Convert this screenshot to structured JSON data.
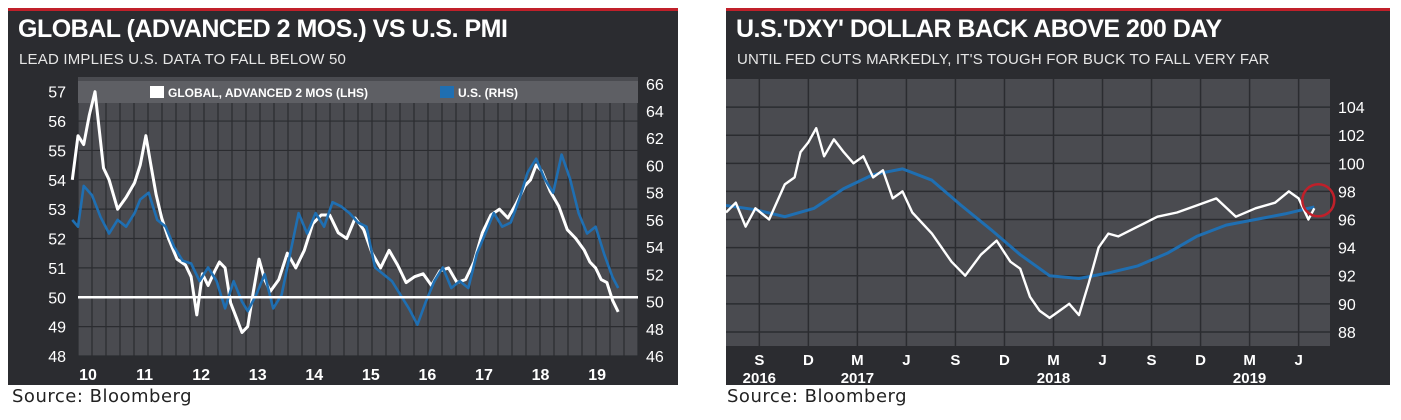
{
  "left": {
    "title": "GLOBAL (ADVANCED 2 MOS.) VS U.S. PMI",
    "subtitle": "LEAD IMPLIES U.S. DATA TO FALL BELOW 50",
    "source": "Source: Bloomberg"
  },
  "right": {
    "title": "U.S.'DXY' DOLLAR BACK ABOVE 200 DAY",
    "subtitle": "UNTIL FED CUTS MARKEDLY, IT'S TOUGH FOR BUCK TO FALL VERY FAR",
    "source": "Source: Bloomberg"
  },
  "colors": {
    "panel": "#2b2c30",
    "plot": "#4a4b50",
    "grid": "#2b2c30",
    "white_line": "#ffffff",
    "blue_line": "#1f6fb2",
    "accent": "#c0202a"
  },
  "chart_data": [
    {
      "type": "line",
      "title": "GLOBAL (ADVANCED 2 MOS.) VS U.S. PMI",
      "legend": {
        "position": "top",
        "entries": [
          "GLOBAL, ADVANCED 2 MOS (LHS)",
          "U.S. (RHS)"
        ]
      },
      "x_ticks": [
        "10",
        "11",
        "12",
        "13",
        "14",
        "15",
        "16",
        "17",
        "18",
        "19"
      ],
      "xlim": [
        2010,
        2019.9
      ],
      "ylim_left": [
        48,
        57.5
      ],
      "ylim_right": [
        46,
        66.5
      ],
      "left_ticks": [
        "57",
        "56",
        "55",
        "54",
        "53",
        "52",
        "51",
        "50",
        "49",
        "48"
      ],
      "right_ticks": [
        "66",
        "64",
        "62",
        "60",
        "58",
        "56",
        "54",
        "52",
        "50",
        "48",
        "46"
      ],
      "reference_line": 50,
      "grid": true,
      "series": [
        {
          "name": "GLOBAL, ADVANCED 2 MOS (LHS)",
          "axis": "left",
          "color": "#ffffff",
          "x": [
            2009.9,
            2010.0,
            2010.1,
            2010.2,
            2010.3,
            2010.45,
            2010.55,
            2010.7,
            2010.85,
            2011.0,
            2011.1,
            2011.2,
            2011.28,
            2011.38,
            2011.48,
            2011.6,
            2011.75,
            2011.9,
            2012.0,
            2012.1,
            2012.2,
            2012.3,
            2012.42,
            2012.5,
            2012.6,
            2012.7,
            2012.8,
            2012.9,
            2013.0,
            2013.1,
            2013.2,
            2013.3,
            2013.4,
            2013.55,
            2013.7,
            2013.85,
            2014.0,
            2014.15,
            2014.3,
            2014.45,
            2014.6,
            2014.75,
            2014.9,
            2015.05,
            2015.2,
            2015.35,
            2015.5,
            2015.65,
            2015.8,
            2015.95,
            2016.1,
            2016.25,
            2016.4,
            2016.55,
            2016.7,
            2016.85,
            2017.0,
            2017.15,
            2017.3,
            2017.45,
            2017.6,
            2017.75,
            2017.9,
            2018.0,
            2018.1,
            2018.2,
            2018.35,
            2018.5,
            2018.65,
            2018.8,
            2018.95,
            2019.05,
            2019.15,
            2019.25,
            2019.35,
            2019.45,
            2019.55
          ],
          "values": [
            54.0,
            55.5,
            55.2,
            56.2,
            57.0,
            54.4,
            54.0,
            53.0,
            53.4,
            53.9,
            54.5,
            55.5,
            54.6,
            53.5,
            52.7,
            52.0,
            51.3,
            51.1,
            50.7,
            49.4,
            50.8,
            50.4,
            50.9,
            51.2,
            51.0,
            49.8,
            49.3,
            48.8,
            49.0,
            50.2,
            51.3,
            50.6,
            50.2,
            50.6,
            51.5,
            51.0,
            51.6,
            52.5,
            52.8,
            52.8,
            52.2,
            52.0,
            52.7,
            52.3,
            51.5,
            51.0,
            51.6,
            51.1,
            50.5,
            50.7,
            50.8,
            50.4,
            50.9,
            51.0,
            50.5,
            50.6,
            51.2,
            52.2,
            52.8,
            53.0,
            52.7,
            53.2,
            53.8,
            54.0,
            54.5,
            54.3,
            53.6,
            53.1,
            52.3,
            52.0,
            51.6,
            51.2,
            51.0,
            50.6,
            50.5,
            49.9,
            49.5
          ]
        },
        {
          "name": "U.S. (RHS)",
          "axis": "right",
          "color": "#1f6fb2",
          "x": [
            2009.9,
            2010.0,
            2010.1,
            2010.25,
            2010.4,
            2010.55,
            2010.7,
            2010.85,
            2011.0,
            2011.1,
            2011.25,
            2011.4,
            2011.55,
            2011.7,
            2011.85,
            2012.0,
            2012.15,
            2012.3,
            2012.45,
            2012.6,
            2012.75,
            2012.9,
            2013.0,
            2013.15,
            2013.3,
            2013.45,
            2013.6,
            2013.75,
            2013.9,
            2014.05,
            2014.2,
            2014.35,
            2014.5,
            2014.65,
            2014.8,
            2014.95,
            2015.1,
            2015.25,
            2015.4,
            2015.55,
            2015.7,
            2015.85,
            2016.0,
            2016.15,
            2016.3,
            2016.45,
            2016.6,
            2016.75,
            2016.9,
            2017.05,
            2017.2,
            2017.35,
            2017.5,
            2017.65,
            2017.8,
            2017.95,
            2018.1,
            2018.25,
            2018.4,
            2018.55,
            2018.7,
            2018.85,
            2019.0,
            2019.15,
            2019.3,
            2019.45,
            2019.55
          ],
          "values": [
            56.0,
            55.5,
            58.5,
            57.8,
            56.2,
            55.0,
            56.0,
            55.5,
            56.5,
            57.5,
            58.0,
            56.0,
            55.5,
            54.0,
            53.0,
            52.8,
            51.5,
            52.5,
            51.5,
            49.5,
            51.5,
            50.0,
            49.3,
            50.5,
            52.0,
            49.5,
            50.5,
            53.5,
            56.5,
            55.0,
            56.5,
            55.5,
            57.3,
            57.0,
            56.5,
            55.8,
            55.5,
            52.5,
            52.0,
            51.5,
            50.5,
            49.5,
            48.3,
            50.0,
            51.5,
            52.5,
            51.0,
            51.5,
            51.0,
            53.5,
            55.0,
            56.5,
            55.5,
            55.8,
            57.5,
            59.5,
            60.5,
            59.0,
            58.0,
            60.8,
            59.0,
            56.5,
            55.0,
            55.5,
            53.5,
            51.8,
            51.0
          ]
        }
      ]
    },
    {
      "type": "line",
      "title": "U.S.'DXY' DOLLAR BACK ABOVE 200 DAY",
      "x_ticks_month": [
        "S",
        "D",
        "M",
        "J",
        "S",
        "D",
        "M",
        "J",
        "S",
        "D",
        "M",
        "J"
      ],
      "x_ticks_year": [
        "2016",
        "2017",
        "2018",
        "2019"
      ],
      "xlim": [
        2016.5,
        2019.58
      ],
      "ylim": [
        87,
        106
      ],
      "right_ticks": [
        "104",
        "102",
        "100",
        "98",
        "96",
        "94",
        "92",
        "90",
        "88"
      ],
      "grid": true,
      "annotation": "circle at latest value",
      "series": [
        {
          "name": "DXY",
          "color": "#ffffff",
          "x": [
            2016.5,
            2016.55,
            2016.6,
            2016.65,
            2016.72,
            2016.8,
            2016.85,
            2016.88,
            2016.92,
            2016.96,
            2017.0,
            2017.05,
            2017.1,
            2017.15,
            2017.2,
            2017.25,
            2017.3,
            2017.35,
            2017.4,
            2017.45,
            2017.55,
            2017.65,
            2017.72,
            2017.8,
            2017.88,
            2017.95,
            2018.0,
            2018.05,
            2018.1,
            2018.15,
            2018.2,
            2018.25,
            2018.3,
            2018.35,
            2018.4,
            2018.45,
            2018.5,
            2018.6,
            2018.7,
            2018.8,
            2018.9,
            2019.0,
            2019.1,
            2019.2,
            2019.3,
            2019.37,
            2019.42,
            2019.47,
            2019.5
          ],
          "values": [
            96.5,
            97.2,
            95.5,
            96.8,
            96.0,
            98.5,
            99.0,
            100.8,
            101.5,
            102.5,
            100.5,
            101.7,
            100.8,
            100.0,
            100.5,
            99.0,
            99.5,
            97.5,
            98.0,
            96.5,
            95.0,
            93.0,
            92.0,
            93.5,
            94.5,
            93.0,
            92.5,
            90.5,
            89.5,
            89.0,
            89.5,
            90.0,
            89.2,
            91.5,
            94.0,
            95.0,
            94.8,
            95.5,
            96.2,
            96.5,
            97.0,
            97.5,
            96.2,
            96.8,
            97.2,
            98.0,
            97.5,
            96.0,
            96.8
          ]
        },
        {
          "name": "200-day moving average",
          "color": "#1f6fb2",
          "x": [
            2016.5,
            2016.65,
            2016.8,
            2016.95,
            2017.1,
            2017.25,
            2017.4,
            2017.55,
            2017.7,
            2017.85,
            2018.0,
            2018.15,
            2018.3,
            2018.45,
            2018.6,
            2018.75,
            2018.9,
            2019.05,
            2019.2,
            2019.35,
            2019.5
          ],
          "values": [
            97.0,
            96.7,
            96.2,
            96.8,
            98.2,
            99.2,
            99.6,
            98.8,
            97.0,
            95.3,
            93.5,
            92.0,
            91.8,
            92.2,
            92.7,
            93.6,
            94.8,
            95.6,
            96.0,
            96.4,
            96.9
          ]
        }
      ]
    }
  ]
}
